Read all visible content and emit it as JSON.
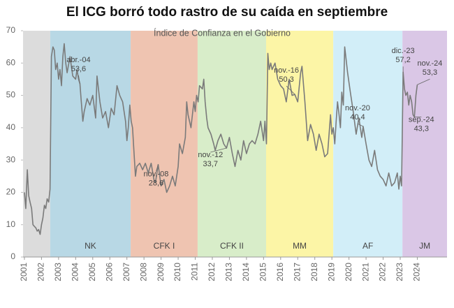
{
  "chart_data": {
    "type": "line",
    "title": "El ICG borró todo rastro de su caída en septiembre",
    "subtitle": "Índice de Confianza en el Gobierno",
    "xlim": [
      2000.92,
      2025.74
    ],
    "ylim": [
      0,
      70
    ],
    "yticks": [
      0,
      10,
      20,
      30,
      40,
      50,
      60,
      70
    ],
    "xticks": [
      2001,
      2002,
      2003,
      2004,
      2005,
      2006,
      2007,
      2008,
      2009,
      2010,
      2011,
      2012,
      2013,
      2014,
      2015,
      2016,
      2017,
      2018,
      2019,
      2020,
      2021,
      2022,
      2023,
      2024
    ],
    "periods": [
      {
        "start": 2000.92,
        "end": 2002.51,
        "color": "#dcdcdc"
      },
      {
        "name": "NK",
        "start": 2002.51,
        "end": 2007.22,
        "color": "#b8d8e5"
      },
      {
        "name": "CFK I",
        "start": 2007.22,
        "end": 2011.14,
        "color": "#efc4b1"
      },
      {
        "name": "CFK II",
        "start": 2011.14,
        "end": 2015.15,
        "color": "#d8edc9"
      },
      {
        "name": "MM",
        "start": 2015.15,
        "end": 2019.08,
        "color": "#fcf5a6"
      },
      {
        "name": "AF",
        "start": 2019.08,
        "end": 2023.13,
        "color": "#d2eef8"
      },
      {
        "name": "JM",
        "start": 2023.13,
        "end": 2025.74,
        "color": "#dac7e6"
      }
    ],
    "series": [
      {
        "color": "#7a7a7a",
        "x": [
          2001.0,
          2001.08,
          2001.17,
          2001.25,
          2001.33,
          2001.42,
          2001.5,
          2001.58,
          2001.67,
          2001.75,
          2001.83,
          2001.92,
          2002.0,
          2002.08,
          2002.17,
          2002.25,
          2002.33,
          2002.42,
          2002.5,
          2002.58,
          2002.67,
          2002.75,
          2002.83,
          2002.92,
          2003.0,
          2003.08,
          2003.17,
          2003.25,
          2003.33,
          2003.42,
          2003.5,
          2003.67,
          2003.83,
          2004.0,
          2004.08,
          2004.17,
          2004.25,
          2004.33,
          2004.42,
          2004.5,
          2004.67,
          2004.83,
          2005.0,
          2005.17,
          2005.25,
          2005.42,
          2005.58,
          2005.75,
          2005.92,
          2006.08,
          2006.25,
          2006.42,
          2006.58,
          2006.75,
          2006.92,
          2007.0,
          2007.08,
          2007.17,
          2007.25,
          2007.33,
          2007.42,
          2007.5,
          2007.58,
          2007.75,
          2007.92,
          2008.08,
          2008.25,
          2008.42,
          2008.58,
          2008.67,
          2008.83,
          2009.0,
          2009.17,
          2009.33,
          2009.5,
          2009.67,
          2009.83,
          2010.0,
          2010.08,
          2010.25,
          2010.42,
          2010.5,
          2010.58,
          2010.75,
          2010.92,
          2011.0,
          2011.08,
          2011.17,
          2011.25,
          2011.42,
          2011.5,
          2011.58,
          2011.67,
          2011.75,
          2011.92,
          2012.08,
          2012.17,
          2012.33,
          2012.5,
          2012.67,
          2012.83,
          2013.0,
          2013.17,
          2013.33,
          2013.5,
          2013.67,
          2013.83,
          2014.0,
          2014.17,
          2014.33,
          2014.5,
          2014.67,
          2014.83,
          2015.0,
          2015.08,
          2015.17,
          2015.25,
          2015.33,
          2015.42,
          2015.5,
          2015.67,
          2015.83,
          2016.0,
          2016.17,
          2016.33,
          2016.5,
          2016.67,
          2016.83,
          2017.0,
          2017.17,
          2017.25,
          2017.42,
          2017.58,
          2017.75,
          2017.92,
          2018.08,
          2018.25,
          2018.42,
          2018.58,
          2018.75,
          2018.92,
          2019.0,
          2019.08,
          2019.17,
          2019.25,
          2019.33,
          2019.42,
          2019.5,
          2019.58,
          2019.67,
          2019.75,
          2019.92,
          2020.08,
          2020.25,
          2020.42,
          2020.58,
          2020.75,
          2020.83,
          2021.0,
          2021.17,
          2021.33,
          2021.5,
          2021.67,
          2021.83,
          2022.0,
          2022.17,
          2022.33,
          2022.5,
          2022.67,
          2022.83,
          2022.92,
          2023.0,
          2023.08,
          2023.17,
          2023.25,
          2023.33,
          2023.42,
          2023.5,
          2023.58,
          2023.67,
          2023.75,
          2023.83,
          2023.92,
          2024.0
        ],
        "values": [
          20,
          15,
          27,
          19,
          17,
          15,
          10,
          9.5,
          9,
          8,
          8.5,
          7,
          10,
          12,
          16,
          15,
          18,
          17,
          21,
          62,
          65,
          64,
          58,
          60,
          55,
          58,
          53,
          62,
          66,
          60,
          57,
          62,
          56,
          55,
          58,
          55,
          53.6,
          48,
          42,
          45,
          49,
          47,
          50,
          43,
          56,
          48,
          43,
          45,
          40,
          46,
          44,
          53,
          50,
          48,
          42,
          36,
          40,
          47,
          42,
          40,
          32,
          25,
          28,
          29,
          27,
          29,
          26,
          29,
          24,
          23,
          28.6,
          22,
          24,
          20,
          22,
          25,
          22,
          28,
          35,
          32,
          37,
          48,
          44,
          40,
          48,
          45,
          50,
          48,
          53,
          52,
          55,
          48,
          43,
          40,
          38,
          35,
          33,
          36,
          38,
          35,
          33.7,
          37,
          32,
          28,
          33,
          30,
          36,
          32,
          35,
          36,
          35,
          38,
          42,
          36,
          42,
          35,
          63,
          58,
          60,
          58,
          60,
          55,
          53,
          52,
          48,
          55,
          50,
          50.3,
          48,
          57,
          59,
          48,
          36,
          41,
          38,
          33,
          38,
          35,
          31,
          32,
          44,
          38,
          40,
          35,
          42,
          48,
          44,
          40,
          51,
          47,
          65,
          57,
          51,
          45,
          38,
          43,
          37,
          40.4,
          35,
          30,
          28,
          33,
          27,
          25,
          24,
          22,
          26,
          22,
          23,
          26,
          21,
          25,
          22,
          57.2,
          52,
          50,
          51,
          47,
          50,
          48,
          44,
          43.3,
          50,
          53.3
        ]
      }
    ],
    "annotations": [
      {
        "date": "abr.-04",
        "label": "53,6",
        "x": 2004.25,
        "y": 53.6
      },
      {
        "date": "nov.-08",
        "label": "28,6",
        "x": 2008.83,
        "y": 28.6
      },
      {
        "date": "nov.-12",
        "label": "33,7",
        "x": 2012.83,
        "y": 33.7
      },
      {
        "date": "nov.-16",
        "label": "50,3",
        "x": 2016.83,
        "y": 50.3
      },
      {
        "date": "nov.-20",
        "label": "40,4",
        "x": 2020.83,
        "y": 40.4
      },
      {
        "date": "dic.-23",
        "label": "57,2",
        "x": 2023.17,
        "y": 57.2
      },
      {
        "date": "sep.-24",
        "label": "43,3",
        "x": 2023.83,
        "y": 43.3
      },
      {
        "date": "nov.-24",
        "label": "53,3",
        "x": 2024.0,
        "y": 53.3
      }
    ]
  }
}
